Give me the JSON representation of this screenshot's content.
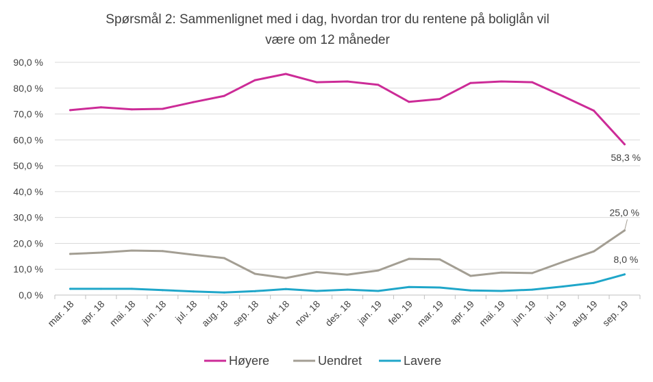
{
  "chart_data": {
    "type": "line",
    "title": "Spørsmål 2: Sammenlignet  med i dag, hvordan tror du rentene på boliglån vil",
    "title_line2": "være om 12 måneder",
    "categories": [
      "mar. 18",
      "apr. 18",
      "mai. 18",
      "jun. 18",
      "jul. 18",
      "aug. 18",
      "sep. 18",
      "okt. 18",
      "nov. 18",
      "des. 18",
      "jan. 19",
      "feb. 19",
      "mar. 19",
      "apr. 19",
      "mai. 19",
      "jun. 19",
      "jul. 19",
      "aug. 19",
      "sep. 19"
    ],
    "ylim": [
      0,
      90
    ],
    "yticks": [
      0,
      10,
      20,
      30,
      40,
      50,
      60,
      70,
      80,
      90
    ],
    "ytick_labels": [
      "0,0 %",
      "10,0 %",
      "20,0 %",
      "30,0 %",
      "40,0 %",
      "50,0 %",
      "60,0 %",
      "70,0 %",
      "80,0 %",
      "90,0 %"
    ],
    "grid": true,
    "legend_position": "bottom",
    "series": [
      {
        "name": "Høyere",
        "color": "#cc2b97",
        "values": [
          71.5,
          72.6,
          71.8,
          72.0,
          74.6,
          77.0,
          83.1,
          85.5,
          82.3,
          82.6,
          81.3,
          74.7,
          75.8,
          82.0,
          82.6,
          82.3,
          76.9,
          71.3,
          58.3
        ],
        "end_label": "58,3 %"
      },
      {
        "name": "Uendret",
        "color": "#a39e93",
        "values": [
          15.9,
          16.4,
          17.2,
          17.0,
          15.6,
          14.3,
          8.2,
          6.6,
          8.9,
          7.9,
          9.5,
          14.0,
          13.8,
          7.4,
          8.7,
          8.5,
          12.8,
          16.9,
          25.0
        ],
        "end_label": "25,0 %"
      },
      {
        "name": "Lavere",
        "color": "#1fa6c9",
        "values": [
          2.4,
          2.4,
          2.4,
          1.9,
          1.4,
          1.0,
          1.5,
          2.3,
          1.6,
          2.1,
          1.6,
          3.1,
          2.9,
          1.8,
          1.6,
          2.1,
          3.3,
          4.7,
          8.0
        ],
        "end_label": "8,0 %"
      }
    ]
  }
}
